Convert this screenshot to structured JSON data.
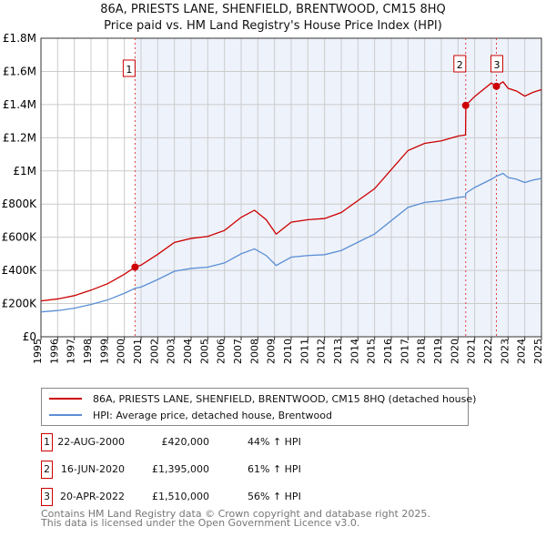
{
  "chart_data": {
    "type": "line",
    "title": "86A, PRIESTS LANE, SHENFIELD, BRENTWOOD, CM15 8HQ",
    "subtitle": "Price paid vs. HM Land Registry's House Price Index (HPI)",
    "xlim": [
      1995,
      2025
    ],
    "ylim": [
      0,
      1800000
    ],
    "y_ticks": [
      {
        "v": 0,
        "label": "£0"
      },
      {
        "v": 200000,
        "label": "£200K"
      },
      {
        "v": 400000,
        "label": "£400K"
      },
      {
        "v": 600000,
        "label": "£600K"
      },
      {
        "v": 800000,
        "label": "£800K"
      },
      {
        "v": 1000000,
        "label": "£1M"
      },
      {
        "v": 1200000,
        "label": "£1.2M"
      },
      {
        "v": 1400000,
        "label": "£1.4M"
      },
      {
        "v": 1600000,
        "label": "£1.6M"
      },
      {
        "v": 1800000,
        "label": "£1.8M"
      }
    ],
    "x_ticks": [
      "1995",
      "1996",
      "1997",
      "1998",
      "1999",
      "2000",
      "2001",
      "2002",
      "2003",
      "2004",
      "2005",
      "2006",
      "2007",
      "2008",
      "2009",
      "2010",
      "2011",
      "2012",
      "2013",
      "2014",
      "2015",
      "2016",
      "2017",
      "2018",
      "2019",
      "2020",
      "2021",
      "2022",
      "2023",
      "2024",
      "2025"
    ],
    "grid": true,
    "x": [
      1995,
      1996,
      1997,
      1998,
      1999,
      2000,
      2000.64,
      2001,
      2002,
      2003,
      2004,
      2005,
      2006,
      2007,
      2007.8,
      2008.5,
      2009.1,
      2010,
      2011,
      2012,
      2013,
      2014,
      2015,
      2016,
      2017,
      2018,
      2019,
      2020,
      2020.45,
      2020.47,
      2021,
      2022,
      2022.3,
      2022.7,
      2023,
      2023.5,
      2024,
      2024.5,
      2025
    ],
    "series": [
      {
        "name": "86A, PRIESTS LANE, SHENFIELD, BRENTWOOD, CM15 8HQ (detached house)",
        "color": "#cc0000",
        "values": [
          216000,
          228000,
          248000,
          281000,
          320000,
          377000,
          420000,
          432000,
          497000,
          569000,
          593000,
          605000,
          641000,
          720000,
          763000,
          706000,
          619000,
          691000,
          706000,
          713000,
          749000,
          821000,
          893000,
          1008000,
          1123000,
          1166000,
          1181000,
          1210000,
          1217000,
          1395000,
          1449000,
          1530000,
          1510000,
          1537000,
          1498000,
          1482000,
          1451000,
          1474000,
          1490000
        ]
      },
      {
        "name": "HPI: Average price, detached house, Brentwood",
        "color": "#5b8fd4",
        "values": [
          150000,
          158000,
          172000,
          195000,
          222000,
          262000,
          292000,
          300000,
          345000,
          395000,
          412000,
          420000,
          445000,
          500000,
          530000,
          490000,
          430000,
          480000,
          490000,
          495000,
          520000,
          570000,
          620000,
          700000,
          780000,
          810000,
          820000,
          840000,
          845000,
          866000,
          900000,
          950000,
          968000,
          985000,
          960000,
          950000,
          930000,
          945000,
          955000
        ]
      }
    ],
    "sales": [
      {
        "id": "1",
        "x": 2000.64,
        "value": 420000,
        "date": "22-AUG-2000",
        "price": "£420,000",
        "hpi": "44% ↑ HPI"
      },
      {
        "id": "2",
        "x": 2020.46,
        "value": 1395000,
        "date": "16-JUN-2020",
        "price": "£1,395,000",
        "hpi": "61% ↑ HPI"
      },
      {
        "id": "3",
        "x": 2022.3,
        "value": 1510000,
        "date": "20-APR-2022",
        "price": "£1,510,000",
        "hpi": "56% ↑ HPI"
      }
    ],
    "legend_position": "bottom"
  },
  "footer": {
    "line1": "Contains HM Land Registry data © Crown copyright and database right 2025.",
    "line2": "This data is licensed under the Open Government Licence v3.0."
  }
}
